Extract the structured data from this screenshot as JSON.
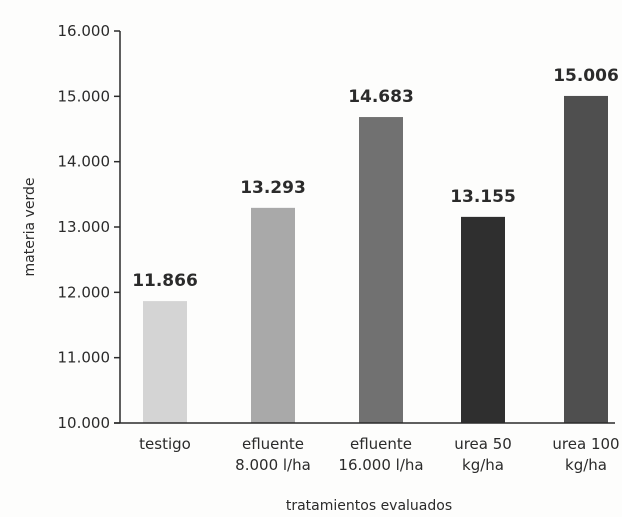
{
  "chart_data": {
    "type": "bar",
    "title": "",
    "xlabel": "tratamientos evaluados",
    "ylabel": "materia verde",
    "ylim": [
      10000,
      16000
    ],
    "yticks": [
      10000,
      11000,
      12000,
      13000,
      14000,
      15000,
      16000
    ],
    "ytick_labels": [
      "10.000",
      "11.000",
      "12.000",
      "13.000",
      "14.000",
      "15.000",
      "16.000"
    ],
    "grid": false,
    "categories": [
      [
        "testigo"
      ],
      [
        "efluente",
        "8.000 l/ha"
      ],
      [
        "efluente",
        "16.000 l/ha"
      ],
      [
        "urea 50",
        "kg/ha"
      ],
      [
        "urea 100",
        "kg/ha"
      ]
    ],
    "values": [
      11866,
      13293,
      14683,
      13155,
      15006
    ],
    "value_labels": [
      "11.866",
      "13.293",
      "14.683",
      "13.155",
      "15.006"
    ],
    "bar_colors": [
      "#d4d4d4",
      "#a9a9a9",
      "#717171",
      "#2f2f2f",
      "#4f4f4f"
    ]
  }
}
